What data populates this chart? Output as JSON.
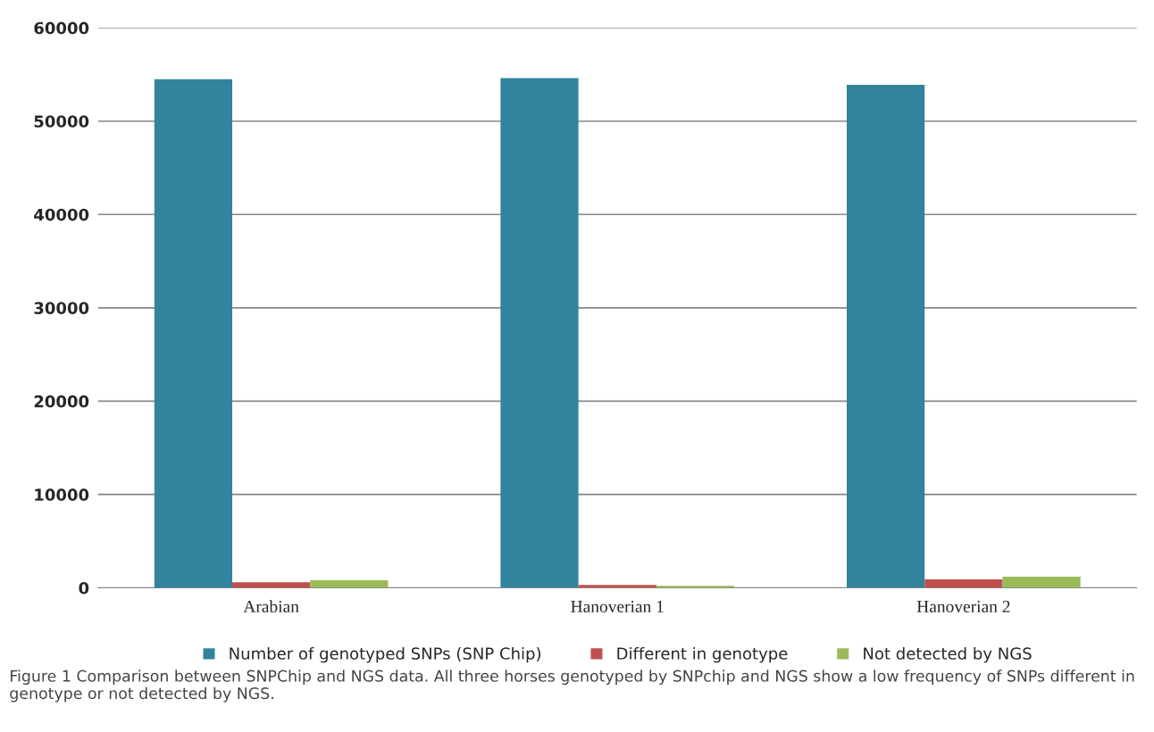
{
  "chart_data": {
    "type": "bar",
    "categories": [
      "Arabian",
      "Hanoverian 1",
      "Hanoverian 2"
    ],
    "series": [
      {
        "name": "Number of genotyped SNPs (SNP Chip)",
        "color": "#31849b",
        "values": [
          54500,
          54600,
          53900
        ]
      },
      {
        "name": "Different in genotype",
        "color": "#c0504d",
        "values": [
          600,
          300,
          900
        ]
      },
      {
        "name": "Not detected by NGS",
        "color": "#9bbb59",
        "values": [
          800,
          200,
          1200
        ]
      }
    ],
    "ylim": [
      0,
      60000
    ],
    "yticks": [
      0,
      10000,
      20000,
      30000,
      40000,
      50000,
      60000
    ],
    "grid": "y",
    "legend": "bottom",
    "annotations": [
      "Figure 1 Comparison between SNPChip and NGS data. All three horses genotyped by SNPchip and NGS show a low frequency of SNPs different in genotype or not detected by NGS."
    ]
  }
}
